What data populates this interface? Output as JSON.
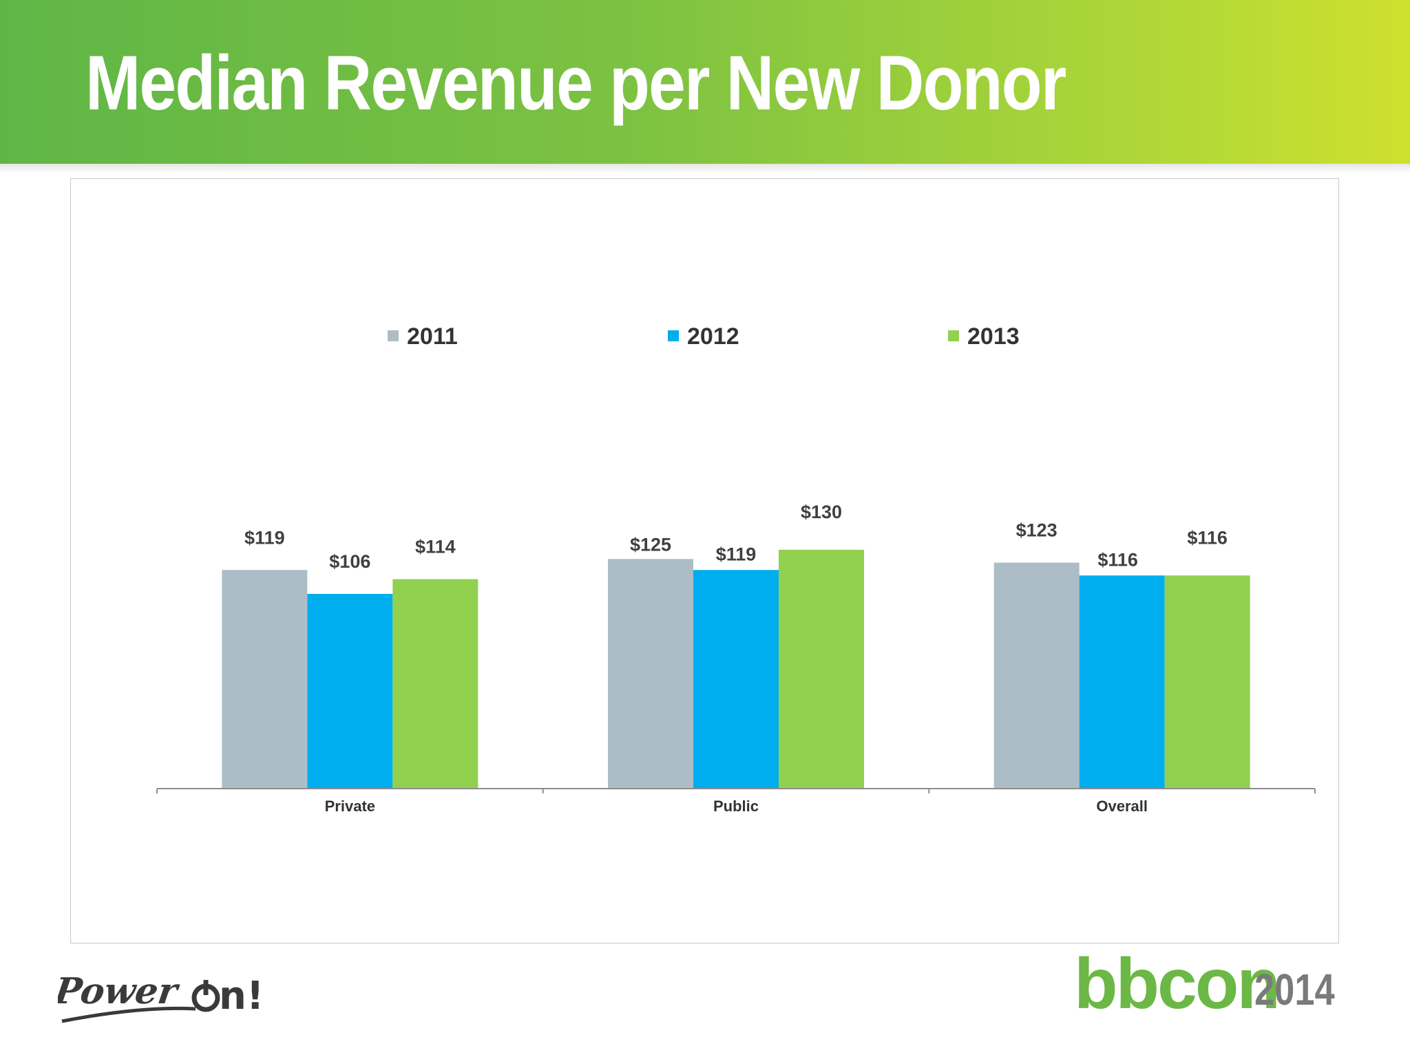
{
  "slide": {
    "title": "Median Revenue per New Donor"
  },
  "colors": {
    "header_gradient_start": "#5fb646",
    "header_gradient_end": "#cfe02e",
    "series_2011": "#adbdc7",
    "series_2012": "#00aeef",
    "series_2013": "#92d050"
  },
  "chart_data": {
    "type": "bar",
    "title": "",
    "xlabel": "",
    "ylabel": "",
    "ylim": [
      0,
      150
    ],
    "grid": false,
    "legend_position": "top",
    "categories": [
      "Private",
      "Public",
      "Overall"
    ],
    "series": [
      {
        "name": "2011",
        "color": "#adbdc7",
        "values": [
          119,
          125,
          123
        ],
        "labels": [
          "$119",
          "$125",
          "$123"
        ]
      },
      {
        "name": "2012",
        "color": "#00aeef",
        "values": [
          106,
          119,
          116
        ],
        "labels": [
          "$106",
          "$119",
          "$116"
        ]
      },
      {
        "name": "2013",
        "color": "#92d050",
        "values": [
          114,
          130,
          116
        ],
        "labels": [
          "$114",
          "$130",
          "$116"
        ]
      }
    ]
  },
  "footer": {
    "left_logo": "Power on!",
    "right_logo_brand": "bbcon",
    "right_logo_year": "2014"
  }
}
